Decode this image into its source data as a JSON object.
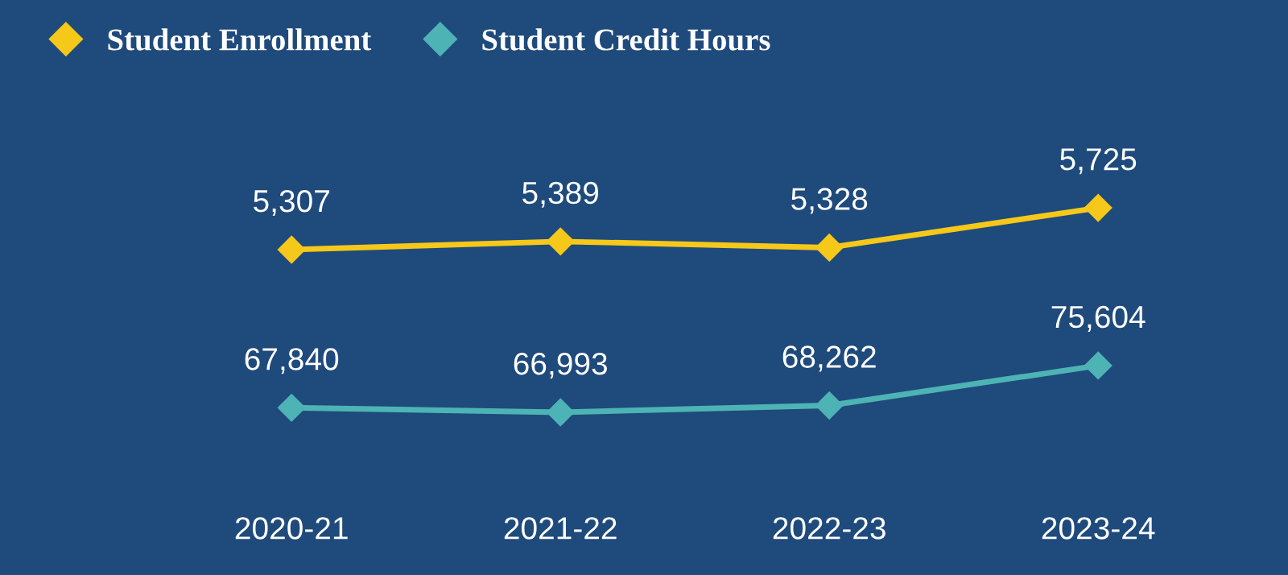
{
  "chart_data": [
    {
      "type": "line",
      "categories": [
        "2020-21",
        "2021-22",
        "2022-23",
        "2023-24"
      ],
      "series": [
        {
          "name": "Student Enrollment",
          "color": "#f6c81a",
          "values": [
            5307,
            5389,
            5328,
            5725
          ],
          "value_labels": [
            "5,307",
            "5,389",
            "5,328",
            "5,725"
          ]
        }
      ],
      "marker": "diamond",
      "legend": "top left",
      "tick_labels": false
    },
    {
      "type": "line",
      "categories": [
        "2020-21",
        "2021-22",
        "2022-23",
        "2023-24"
      ],
      "series": [
        {
          "name": "Student Credit Hours",
          "color": "#4db3b5",
          "values": [
            67840,
            66993,
            68262,
            75604
          ],
          "value_labels": [
            "67,840",
            "66,993",
            "68,262",
            "75,604"
          ]
        }
      ],
      "marker": "diamond",
      "legend": "top left",
      "tick_labels": "x"
    }
  ]
}
